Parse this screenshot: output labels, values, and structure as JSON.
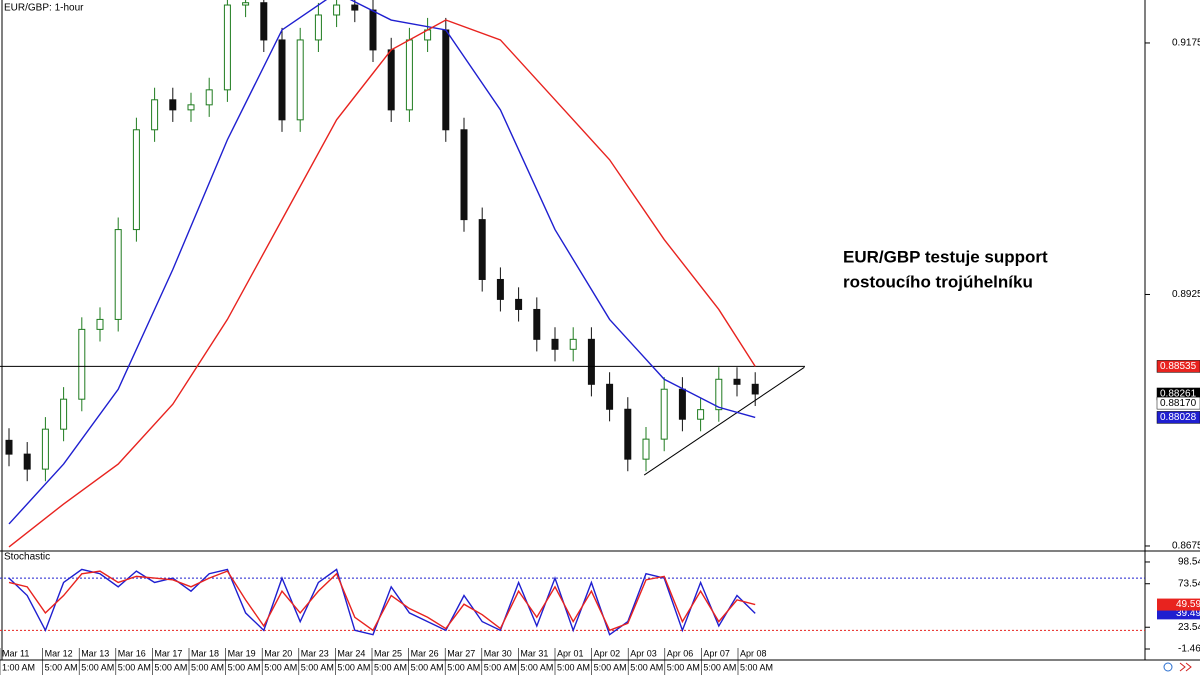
{
  "annotation": [
    "EUR/GBP testuje support",
    "rostoucího trojúhelníku"
  ],
  "x_axis": {
    "dates": [
      "Mar 11",
      "Mar 12",
      "Mar 13",
      "Mar 16",
      "Mar 17",
      "Mar 18",
      "Mar 19",
      "Mar 20",
      "Mar 23",
      "Mar 24",
      "Mar 25",
      "Mar 26",
      "Mar 27",
      "Mar 30",
      "Mar 31",
      "Apr 01",
      "Apr 02",
      "Apr 03",
      "Apr 06",
      "Apr 07",
      "Apr 08"
    ],
    "times": [
      "1:00 AM",
      "5:00 AM",
      "5:00 AM",
      "5:00 AM",
      "5:00 AM",
      "5:00 AM",
      "5:00 AM",
      "5:00 AM",
      "5:00 AM",
      "5:00 AM",
      "5:00 AM",
      "5:00 AM",
      "5:00 AM",
      "5:00 AM",
      "5:00 AM",
      "5:00 AM",
      "5:00 AM",
      "5:00 AM",
      "5:00 AM",
      "5:00 AM",
      "5:00 AM"
    ]
  },
  "chart_data": [
    {
      "type": "candlestick",
      "title": "EUR/GBP: 1-hour",
      "up_color": "#1e7b1e",
      "down_color": "#111111",
      "open": [
        0.878,
        0.87663,
        0.87514,
        0.87911,
        0.88209,
        0.88903,
        0.89002,
        0.89895,
        0.90887,
        0.91185,
        0.91085,
        0.91135,
        0.91284,
        0.92127,
        0.9215,
        0.9178,
        0.90986,
        0.9178,
        0.92028,
        0.92127,
        0.92077,
        0.91681,
        0.91085,
        0.9178,
        0.91879,
        0.90887,
        0.89994,
        0.89399,
        0.89201,
        0.89101,
        0.88804,
        0.88705,
        0.88804,
        0.88357,
        0.88109,
        0.87613,
        0.87812,
        0.88308,
        0.8801,
        0.88105,
        0.88407,
        0.88357
      ],
      "high": [
        0.8792,
        0.87783,
        0.88031,
        0.88329,
        0.89023,
        0.89122,
        0.90015,
        0.91007,
        0.91305,
        0.91305,
        0.91255,
        0.91404,
        0.92247,
        0.9227,
        0.9227,
        0.919,
        0.919,
        0.92148,
        0.92247,
        0.92247,
        0.92197,
        0.91801,
        0.919,
        0.91999,
        0.91999,
        0.91007,
        0.90114,
        0.89519,
        0.89321,
        0.89221,
        0.88924,
        0.88924,
        0.88924,
        0.88477,
        0.88229,
        0.87932,
        0.88428,
        0.88428,
        0.88225,
        0.88527,
        0.88527,
        0.88477
      ],
      "low": [
        0.87543,
        0.87394,
        0.87394,
        0.87791,
        0.88089,
        0.88783,
        0.88882,
        0.89775,
        0.90767,
        0.90965,
        0.90965,
        0.91015,
        0.91164,
        0.92007,
        0.9166,
        0.90866,
        0.90866,
        0.9166,
        0.91908,
        0.91957,
        0.91561,
        0.90965,
        0.90965,
        0.9166,
        0.90767,
        0.89874,
        0.89279,
        0.89081,
        0.88981,
        0.88684,
        0.88585,
        0.88585,
        0.88237,
        0.87989,
        0.87493,
        0.87493,
        0.87692,
        0.8789,
        0.8789,
        0.87985,
        0.88237,
        0.88141
      ],
      "close": [
        0.87663,
        0.87514,
        0.87911,
        0.88209,
        0.88903,
        0.89002,
        0.89895,
        0.90887,
        0.91185,
        0.91085,
        0.91135,
        0.91284,
        0.92127,
        0.9215,
        0.9178,
        0.90986,
        0.9178,
        0.92028,
        0.92127,
        0.92077,
        0.91681,
        0.91085,
        0.9178,
        0.91879,
        0.90887,
        0.89994,
        0.89399,
        0.89201,
        0.89101,
        0.88804,
        0.88705,
        0.88804,
        0.88357,
        0.88109,
        0.87613,
        0.87812,
        0.88308,
        0.8801,
        0.88105,
        0.88407,
        0.88357,
        0.88261
      ],
      "series": [
        {
          "color": "#1f1fd0",
          "x": [
            0,
            3,
            6,
            9,
            12,
            15,
            18,
            21,
            24,
            27,
            30,
            33,
            36,
            39,
            41
          ],
          "values": [
            0.86969,
            0.87564,
            0.88308,
            0.89498,
            0.90788,
            0.91879,
            0.9225,
            0.91978,
            0.91879,
            0.91085,
            0.89895,
            0.89002,
            0.88407,
            0.88129,
            0.88028
          ]
        },
        {
          "color": "#e8231f",
          "x": [
            0,
            3,
            6,
            9,
            12,
            15,
            18,
            21,
            24,
            27,
            30,
            33,
            36,
            39,
            41
          ],
          "values": [
            0.8674,
            0.87167,
            0.87564,
            0.88159,
            0.89002,
            0.89994,
            0.90986,
            0.91681,
            0.91978,
            0.9178,
            0.91185,
            0.90589,
            0.89796,
            0.89101,
            0.88535
          ]
        }
      ],
      "level": {
        "value": 0.88535,
        "color": "#000000"
      },
      "trendline": {
        "x": [
          34.9,
          43.7
        ],
        "values": [
          0.87455,
          0.88526
        ],
        "color": "#000000"
      },
      "price_labels": [
        {
          "value": 0.8817,
          "label": "0.88170"
        }
      ],
      "ylim": [
        0.8671,
        0.92177
      ],
      "yticks": [
        {
          "value": 0.9175,
          "label": "0.91750"
        },
        {
          "value": 0.8925,
          "label": "0.89250"
        },
        {
          "value": 0.8675,
          "label": "0.86750"
        }
      ]
    },
    {
      "type": "line",
      "title": "Stochastic",
      "series": [
        {
          "color": "#1f1fd0",
          "values": [
            80,
            60,
            20,
            75,
            90,
            85,
            70,
            88,
            75,
            80,
            65,
            85,
            90,
            40,
            20,
            80,
            30,
            75,
            90,
            20,
            15,
            70,
            40,
            30,
            20,
            60,
            30,
            20,
            75,
            25,
            80,
            20,
            75,
            15,
            30,
            85,
            80,
            20,
            75,
            25,
            60,
            39.49
          ]
        },
        {
          "color": "#e8231f",
          "values": [
            75,
            70,
            40,
            60,
            85,
            88,
            75,
            82,
            80,
            78,
            70,
            80,
            88,
            55,
            25,
            65,
            40,
            65,
            85,
            35,
            20,
            60,
            45,
            35,
            22,
            50,
            38,
            22,
            65,
            35,
            70,
            30,
            65,
            20,
            28,
            78,
            82,
            30,
            65,
            30,
            55,
            49.59
          ]
        }
      ],
      "levels": [
        {
          "value": 80,
          "color": "#1f1fd0"
        },
        {
          "value": 20,
          "color": "#e8231f"
        }
      ],
      "ylim": [
        -14.1,
        110
      ],
      "yticks": [
        98.54,
        73.54,
        23.54,
        -1.46
      ]
    }
  ]
}
